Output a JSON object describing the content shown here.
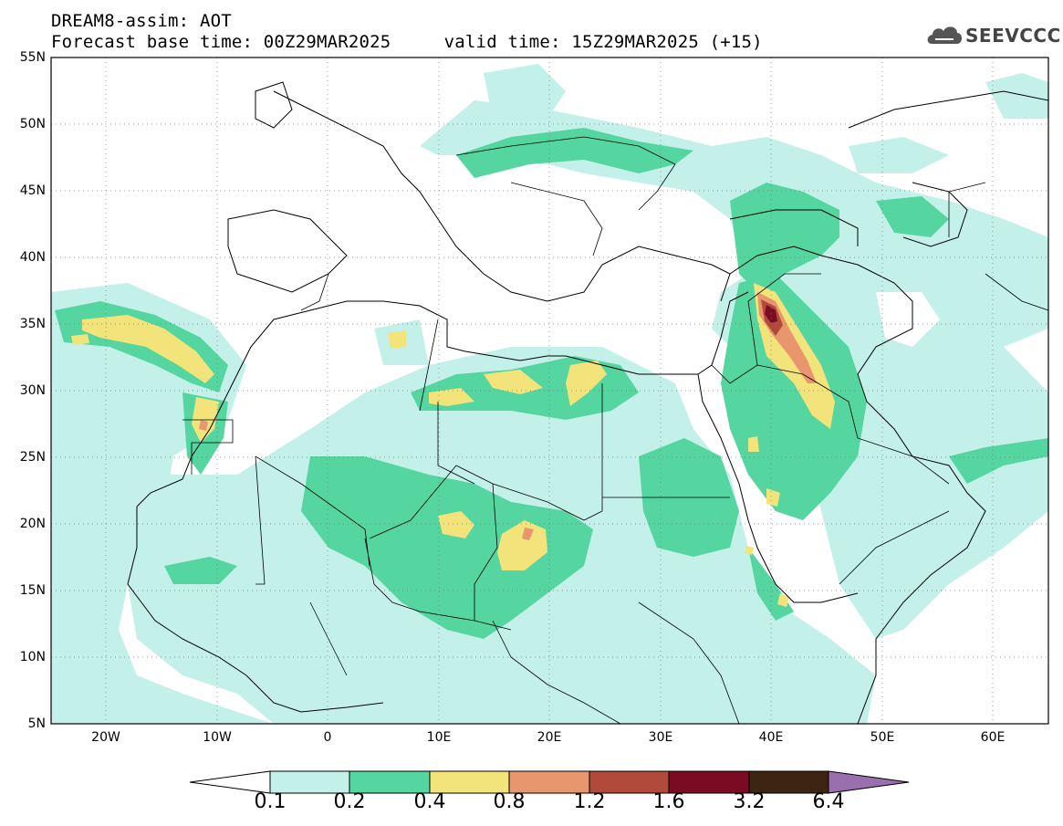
{
  "header": {
    "line1": "DREAM8-assim: AOT",
    "line2": "Forecast base time: 00Z29MAR2025     valid time: 15Z29MAR2025 (+15)"
  },
  "logo": {
    "text": "SEEVCCC",
    "icon": "cloud-icon"
  },
  "map": {
    "lat_labels": [
      "55N",
      "50N",
      "45N",
      "40N",
      "35N",
      "30N",
      "25N",
      "20N",
      "15N",
      "10N",
      "5N"
    ],
    "lon_labels": [
      "20W",
      "10W",
      "0",
      "10E",
      "20E",
      "30E",
      "40E",
      "50E",
      "60E"
    ],
    "lat_range": [
      5,
      55
    ],
    "lon_range": [
      -25,
      65
    ]
  },
  "colorbar": {
    "levels": [
      "0.1",
      "0.2",
      "0.4",
      "0.8",
      "1.2",
      "1.6",
      "3.2",
      "6.4"
    ],
    "colors": [
      "#ffffff",
      "#c4f0ea",
      "#55d59f",
      "#f2e47a",
      "#e8966e",
      "#b14a3b",
      "#7a0b22",
      "#3c2513",
      "#9a6fae"
    ]
  }
}
